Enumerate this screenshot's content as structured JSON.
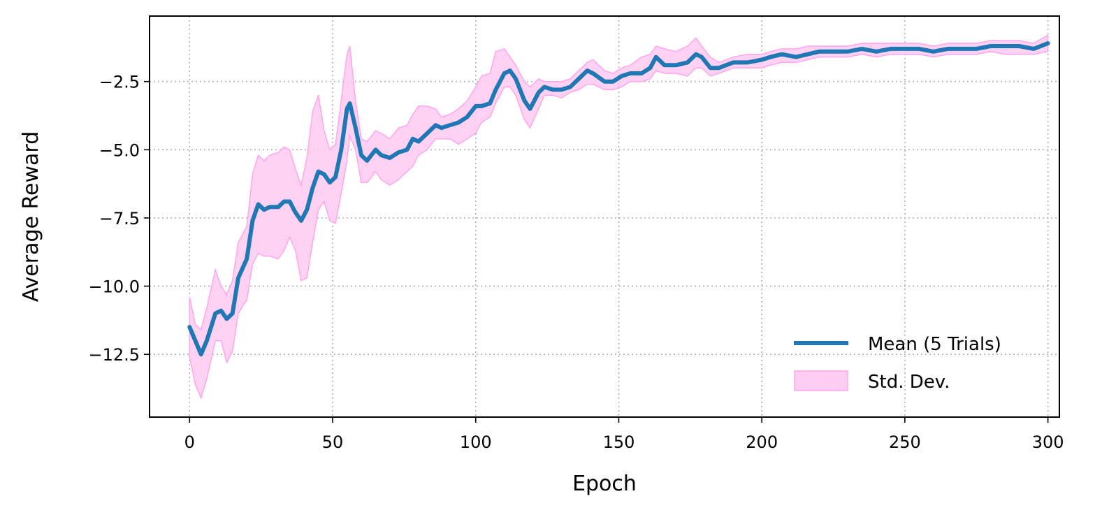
{
  "chart_data": {
    "type": "line",
    "xlabel": "Epoch",
    "ylabel": "Average Reward",
    "xlim": [
      -14,
      304
    ],
    "ylim": [
      -14.8,
      -0.1
    ],
    "xticks": [
      0,
      50,
      100,
      150,
      200,
      250,
      300
    ],
    "yticks": [
      -12.5,
      -10.0,
      -7.5,
      -5.0,
      -2.5
    ],
    "xtick_labels": [
      "0",
      "50",
      "100",
      "150",
      "200",
      "250",
      "300"
    ],
    "ytick_labels": [
      "−12.5",
      "−10.0",
      "−7.5",
      "−5.0",
      "−2.5"
    ],
    "grid": true,
    "legend_position": "lower-right",
    "colors": {
      "mean": "#1f77b4",
      "band_fill": "#ffcdf2",
      "band_edge": "#ffa6ea",
      "grid": "#b0b0b0"
    },
    "series": [
      {
        "name": "Mean (5 Trials)",
        "kind": "line",
        "x": [
          0,
          2,
          4,
          6,
          9,
          11,
          13,
          15,
          17,
          20,
          22,
          24,
          26,
          28,
          31,
          33,
          35,
          37,
          39,
          41,
          43,
          45,
          47,
          49,
          51,
          53,
          55,
          56,
          58,
          60,
          62,
          65,
          67,
          70,
          73,
          76,
          78,
          80,
          83,
          86,
          88,
          91,
          94,
          97,
          100,
          102,
          105,
          107,
          110,
          112,
          114,
          117,
          119,
          122,
          124,
          127,
          130,
          133,
          136,
          139,
          141,
          145,
          148,
          151,
          154,
          158,
          161,
          163,
          166,
          170,
          174,
          177,
          179,
          182,
          185,
          190,
          195,
          200,
          203,
          207,
          212,
          216,
          220,
          225,
          230,
          235,
          240,
          245,
          250,
          255,
          260,
          265,
          270,
          275,
          280,
          285,
          290,
          295,
          300
        ],
        "y": [
          -11.5,
          -12.0,
          -12.5,
          -12.0,
          -11.0,
          -10.9,
          -11.2,
          -11.0,
          -9.7,
          -9.0,
          -7.6,
          -7.0,
          -7.2,
          -7.1,
          -7.1,
          -6.9,
          -6.9,
          -7.3,
          -7.6,
          -7.2,
          -6.4,
          -5.8,
          -5.9,
          -6.2,
          -6.0,
          -5.0,
          -3.5,
          -3.3,
          -4.2,
          -5.2,
          -5.4,
          -5.0,
          -5.2,
          -5.3,
          -5.1,
          -5.0,
          -4.6,
          -4.7,
          -4.4,
          -4.1,
          -4.2,
          -4.1,
          -4.0,
          -3.8,
          -3.4,
          -3.4,
          -3.3,
          -2.8,
          -2.2,
          -2.1,
          -2.4,
          -3.2,
          -3.5,
          -2.9,
          -2.7,
          -2.8,
          -2.8,
          -2.7,
          -2.4,
          -2.1,
          -2.2,
          -2.5,
          -2.5,
          -2.3,
          -2.2,
          -2.2,
          -2.0,
          -1.6,
          -1.9,
          -1.9,
          -1.8,
          -1.5,
          -1.6,
          -2.0,
          -2.0,
          -1.8,
          -1.8,
          -1.7,
          -1.6,
          -1.5,
          -1.6,
          -1.5,
          -1.4,
          -1.4,
          -1.4,
          -1.3,
          -1.4,
          -1.3,
          -1.3,
          -1.3,
          -1.4,
          -1.3,
          -1.3,
          -1.3,
          -1.2,
          -1.2,
          -1.2,
          -1.3,
          -1.1
        ]
      },
      {
        "name": "Std. Dev.",
        "kind": "band",
        "x": [
          0,
          2,
          4,
          6,
          9,
          11,
          13,
          15,
          17,
          20,
          22,
          24,
          26,
          28,
          31,
          33,
          35,
          37,
          39,
          41,
          43,
          45,
          47,
          49,
          51,
          53,
          55,
          56,
          58,
          60,
          62,
          65,
          67,
          70,
          73,
          76,
          78,
          80,
          83,
          86,
          88,
          91,
          94,
          97,
          100,
          102,
          105,
          107,
          110,
          112,
          114,
          117,
          119,
          122,
          124,
          127,
          130,
          133,
          136,
          139,
          141,
          145,
          148,
          151,
          154,
          158,
          161,
          163,
          166,
          170,
          174,
          177,
          179,
          182,
          185,
          190,
          195,
          200,
          203,
          207,
          212,
          216,
          220,
          225,
          230,
          235,
          240,
          245,
          250,
          255,
          260,
          265,
          270,
          275,
          280,
          285,
          290,
          295,
          300
        ],
        "lower": [
          -12.6,
          -13.6,
          -14.1,
          -13.4,
          -12.0,
          -12.0,
          -12.8,
          -12.4,
          -11.0,
          -10.5,
          -9.2,
          -8.8,
          -8.9,
          -8.9,
          -9.0,
          -8.7,
          -8.2,
          -8.7,
          -9.8,
          -9.7,
          -8.4,
          -7.2,
          -6.9,
          -7.6,
          -7.7,
          -6.6,
          -5.4,
          -4.5,
          -5.0,
          -6.2,
          -6.2,
          -5.8,
          -6.1,
          -6.3,
          -6.1,
          -5.8,
          -5.6,
          -5.2,
          -5.0,
          -4.6,
          -4.6,
          -4.6,
          -4.8,
          -4.6,
          -4.4,
          -4.0,
          -3.8,
          -3.3,
          -2.7,
          -2.7,
          -3.0,
          -3.9,
          -4.2,
          -3.5,
          -3.0,
          -3.0,
          -3.1,
          -2.9,
          -2.8,
          -2.6,
          -2.6,
          -2.8,
          -2.8,
          -2.7,
          -2.5,
          -2.5,
          -2.4,
          -2.1,
          -2.2,
          -2.2,
          -2.3,
          -2.0,
          -2.0,
          -2.3,
          -2.2,
          -2.0,
          -2.0,
          -2.0,
          -1.9,
          -1.8,
          -1.8,
          -1.7,
          -1.6,
          -1.6,
          -1.6,
          -1.5,
          -1.6,
          -1.5,
          -1.5,
          -1.5,
          -1.6,
          -1.5,
          -1.5,
          -1.5,
          -1.4,
          -1.5,
          -1.5,
          -1.5,
          -1.4
        ],
        "upper": [
          -10.4,
          -11.4,
          -11.6,
          -10.8,
          -9.4,
          -10.0,
          -10.3,
          -9.8,
          -8.4,
          -7.8,
          -5.9,
          -5.2,
          -5.4,
          -5.2,
          -5.1,
          -4.9,
          -5.0,
          -5.7,
          -6.3,
          -5.3,
          -3.6,
          -3.0,
          -4.3,
          -5.0,
          -4.8,
          -3.2,
          -1.5,
          -1.2,
          -3.2,
          -4.6,
          -4.7,
          -4.3,
          -4.4,
          -4.6,
          -4.2,
          -4.1,
          -3.7,
          -3.4,
          -3.4,
          -3.5,
          -3.8,
          -3.7,
          -3.5,
          -3.2,
          -2.7,
          -2.3,
          -2.2,
          -1.4,
          -1.3,
          -1.6,
          -1.9,
          -2.5,
          -2.7,
          -2.4,
          -2.5,
          -2.5,
          -2.5,
          -2.4,
          -2.1,
          -1.8,
          -1.7,
          -2.1,
          -2.2,
          -2.0,
          -1.9,
          -1.6,
          -1.5,
          -1.2,
          -1.3,
          -1.4,
          -1.2,
          -0.9,
          -1.2,
          -1.6,
          -1.8,
          -1.6,
          -1.5,
          -1.5,
          -1.4,
          -1.3,
          -1.3,
          -1.2,
          -1.2,
          -1.2,
          -1.2,
          -1.1,
          -1.1,
          -1.1,
          -1.1,
          -1.1,
          -1.2,
          -1.1,
          -1.1,
          -1.1,
          -1.0,
          -1.0,
          -1.0,
          -1.1,
          -0.8
        ]
      }
    ]
  }
}
